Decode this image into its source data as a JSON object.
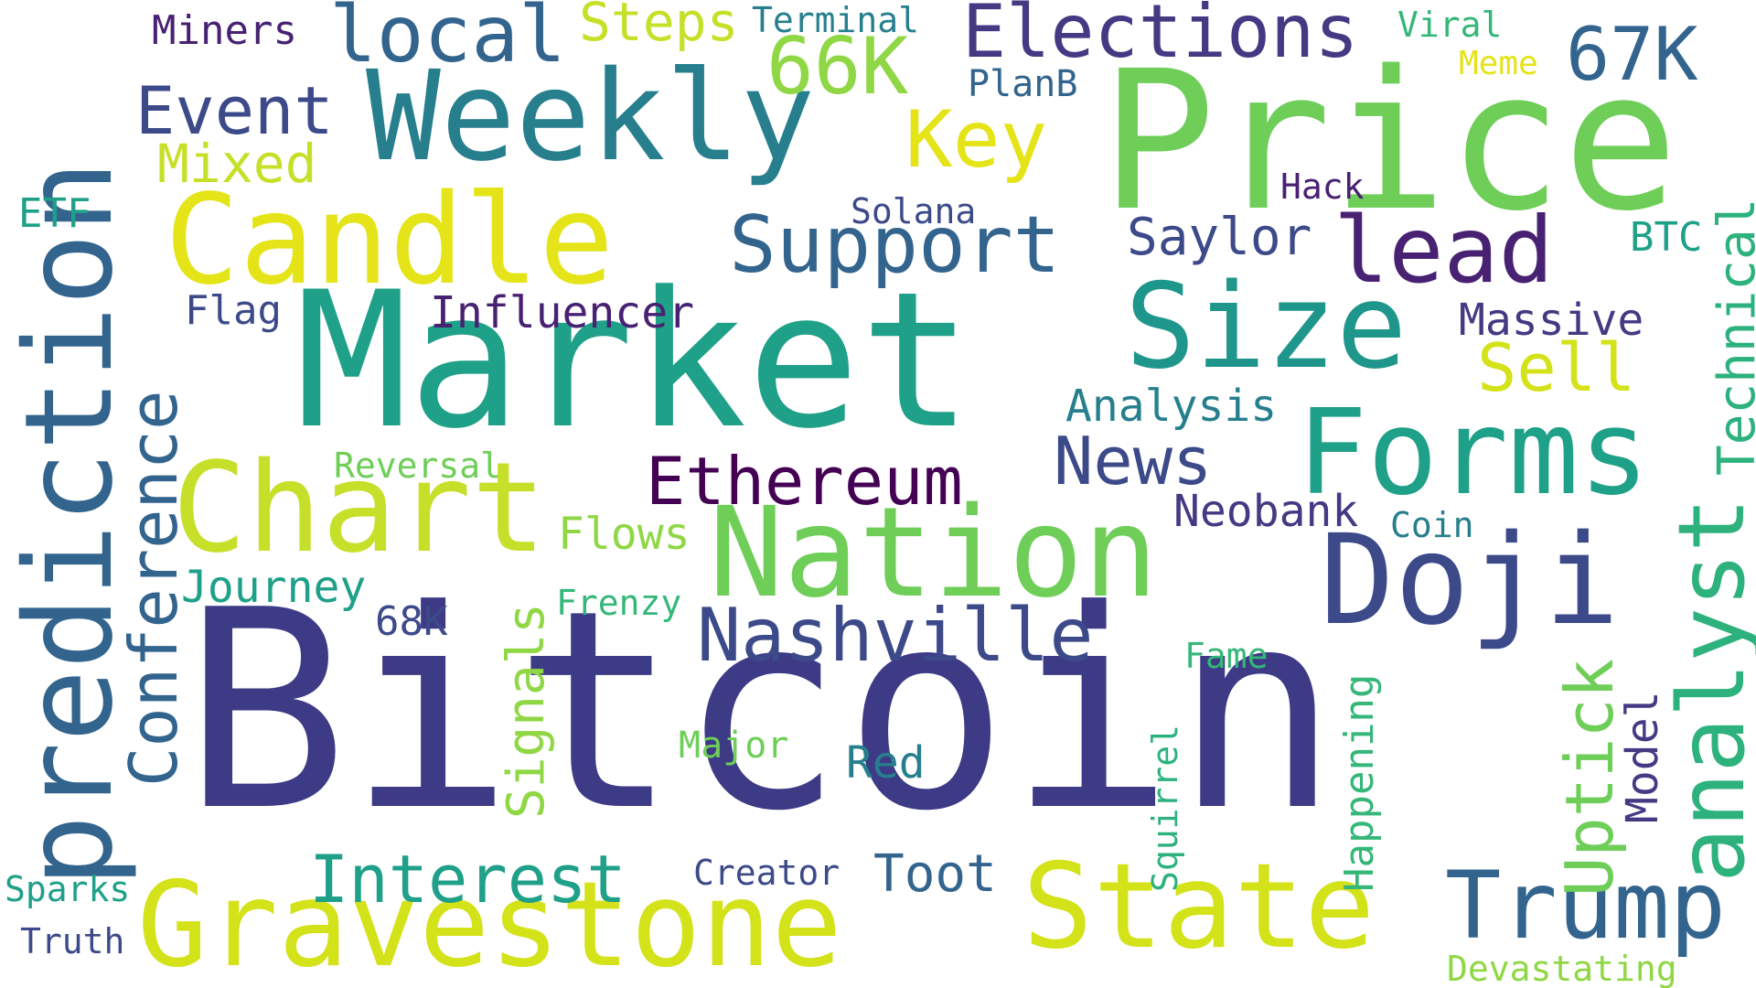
{
  "palette": {
    "dark_purple": "#440154",
    "indigo": "#3d4a8a",
    "slate_blue": "#32648e",
    "teal_blue": "#277f8e",
    "teal": "#1fa088",
    "green": "#35b779",
    "light_green": "#6ece58",
    "lime": "#b5de2b",
    "yellow": "#e4e419",
    "background": "#ffffff"
  },
  "words": [
    {
      "text": "Bitcoin",
      "color": "#3d3a86"
    },
    {
      "text": "Market",
      "color": "#1fa088"
    },
    {
      "text": "Price",
      "color": "#6ece58"
    },
    {
      "text": "prediction",
      "color": "#32648e"
    },
    {
      "text": "Weekly",
      "color": "#277f8e"
    },
    {
      "text": "Candle",
      "color": "#e4e419"
    },
    {
      "text": "Chart",
      "color": "#c6e02a"
    },
    {
      "text": "Nation",
      "color": "#6ece58"
    },
    {
      "text": "Gravestone",
      "color": "#d4e21a"
    },
    {
      "text": "State",
      "color": "#d4e21a"
    },
    {
      "text": "Size",
      "color": "#1f968b"
    },
    {
      "text": "Forms",
      "color": "#1fa088"
    },
    {
      "text": "Doji",
      "color": "#3d4a8a"
    },
    {
      "text": "Trump",
      "color": "#32648e"
    },
    {
      "text": "analyst",
      "color": "#2db27d"
    },
    {
      "text": "lead",
      "color": "#482173"
    },
    {
      "text": "Support",
      "color": "#32648e"
    },
    {
      "text": "Key",
      "color": "#e4e419"
    },
    {
      "text": "Elections",
      "color": "#443983"
    },
    {
      "text": "local",
      "color": "#32648e"
    },
    {
      "text": "66K",
      "color": "#8fd744"
    },
    {
      "text": "67K",
      "color": "#32648e"
    },
    {
      "text": "Event",
      "color": "#3d4a8a"
    },
    {
      "text": "Mixed",
      "color": "#c6e02a"
    },
    {
      "text": "Steps",
      "color": "#c6e02a"
    },
    {
      "text": "Terminal",
      "color": "#277f8e"
    },
    {
      "text": "Miners",
      "color": "#482173"
    },
    {
      "text": "Viral",
      "color": "#35b779"
    },
    {
      "text": "Meme",
      "color": "#e4e419"
    },
    {
      "text": "PlanB",
      "color": "#32648e"
    },
    {
      "text": "Hack",
      "color": "#482173"
    },
    {
      "text": "Solana",
      "color": "#3d4a8a"
    },
    {
      "text": "Saylor",
      "color": "#3d4a8a"
    },
    {
      "text": "ETF",
      "color": "#1fa088"
    },
    {
      "text": "BTC",
      "color": "#1fa088"
    },
    {
      "text": "Technical",
      "color": "#2db27d"
    },
    {
      "text": "Flag",
      "color": "#3d4a8a"
    },
    {
      "text": "Influencer",
      "color": "#482173"
    },
    {
      "text": "Massive",
      "color": "#443983"
    },
    {
      "text": "Sell",
      "color": "#d4e21a"
    },
    {
      "text": "Conference",
      "color": "#32648e"
    },
    {
      "text": "Analysis",
      "color": "#277f8e"
    },
    {
      "text": "Reversal",
      "color": "#6ece58"
    },
    {
      "text": "Ethereum",
      "color": "#440154"
    },
    {
      "text": "News",
      "color": "#3d4a8a"
    },
    {
      "text": "Neobank",
      "color": "#443983"
    },
    {
      "text": "Coin",
      "color": "#277f8e"
    },
    {
      "text": "Flows",
      "color": "#8fd744"
    },
    {
      "text": "Journey",
      "color": "#1fa088"
    },
    {
      "text": "Signals",
      "color": "#8fd744"
    },
    {
      "text": "Frenzy",
      "color": "#35b779"
    },
    {
      "text": "68K",
      "color": "#3d4a8a"
    },
    {
      "text": "Nashville",
      "color": "#3d4a8a"
    },
    {
      "text": "Uptick",
      "color": "#6ece58"
    },
    {
      "text": "Fame",
      "color": "#35b779"
    },
    {
      "text": "Major",
      "color": "#6ece58"
    },
    {
      "text": "Red",
      "color": "#277f8e"
    },
    {
      "text": "Happening",
      "color": "#35b779"
    },
    {
      "text": "Model",
      "color": "#443983"
    },
    {
      "text": "Squirrel",
      "color": "#2db27d"
    },
    {
      "text": "Interest",
      "color": "#1fa088"
    },
    {
      "text": "Creator",
      "color": "#3d4a8a"
    },
    {
      "text": "Toot",
      "color": "#32648e"
    },
    {
      "text": "Sparks",
      "color": "#1fa088"
    },
    {
      "text": "Truth",
      "color": "#3d4a8a"
    },
    {
      "text": "Devastating",
      "color": "#8fd744"
    }
  ]
}
